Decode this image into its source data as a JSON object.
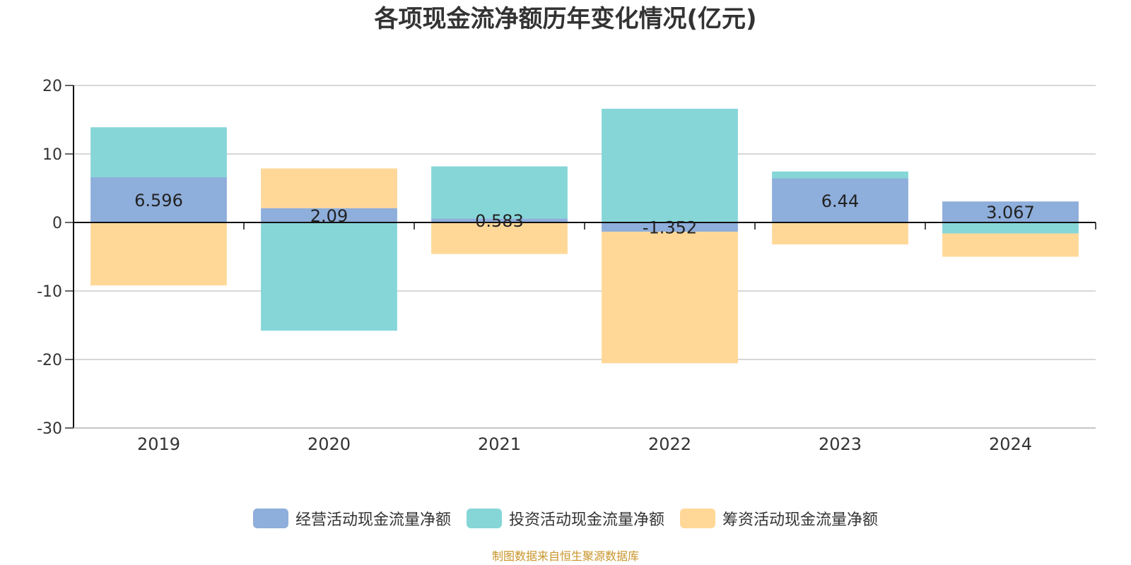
{
  "chart_data": {
    "type": "bar",
    "stacked": true,
    "title": "各项现金流净额历年变化情况(亿元)",
    "categories": [
      "2019",
      "2020",
      "2021",
      "2022",
      "2023",
      "2024"
    ],
    "series": [
      {
        "name": "经营活动现金流量净额",
        "color": "#8eaedb",
        "values": [
          6.596,
          2.09,
          0.583,
          -1.352,
          6.44,
          3.067
        ],
        "data_labels": [
          "6.596",
          "2.09",
          "0.583",
          "-1.352",
          "6.44",
          "3.067"
        ]
      },
      {
        "name": "投资活动现金流量净额",
        "color": "#86d6d8",
        "values": [
          7.3,
          -15.8,
          7.6,
          16.6,
          1.0,
          -1.6
        ]
      },
      {
        "name": "筹资活动现金流量净额",
        "color": "#ffd898",
        "values": [
          -9.2,
          5.8,
          -4.6,
          -19.2,
          -3.2,
          -3.4
        ]
      }
    ],
    "ylim": [
      -30,
      20
    ],
    "yticks": [
      20,
      10,
      0,
      -10,
      -20,
      -30
    ],
    "ytick_labels": [
      "20",
      "10",
      "0",
      "-10",
      "-20",
      "-30"
    ],
    "grid": true,
    "legend_position": "bottom"
  },
  "source_note": "制图数据来自恒生聚源数据库",
  "source_note_color": "#c8952a"
}
